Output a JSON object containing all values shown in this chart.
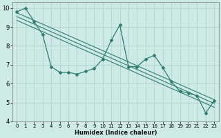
{
  "xlabel": "Humidex (Indice chaleur)",
  "bg_color": "#ceeae6",
  "grid_color": "#afd4cf",
  "line_color": "#2d7d72",
  "xlim": [
    -0.5,
    23.5
  ],
  "ylim": [
    4,
    10.3
  ],
  "yticks": [
    4,
    5,
    6,
    7,
    8,
    9,
    10
  ],
  "xticks": [
    0,
    1,
    2,
    3,
    4,
    5,
    6,
    7,
    8,
    9,
    10,
    11,
    12,
    13,
    14,
    15,
    16,
    17,
    18,
    19,
    20,
    21,
    22,
    23
  ],
  "data_x": [
    0,
    1,
    2,
    3,
    4,
    5,
    6,
    7,
    8,
    9,
    10,
    11,
    12,
    13,
    14,
    15,
    16,
    17,
    18,
    19,
    20,
    21,
    22,
    23
  ],
  "data_y": [
    9.8,
    10.0,
    9.3,
    8.6,
    6.9,
    6.6,
    6.6,
    6.5,
    6.65,
    6.8,
    7.3,
    8.3,
    9.1,
    6.9,
    6.9,
    7.3,
    7.5,
    6.85,
    6.1,
    5.6,
    5.5,
    5.35,
    4.45,
    5.1
  ],
  "reg_lines": [
    {
      "x": [
        0,
        23
      ],
      "y": [
        9.75,
        5.15
      ]
    },
    {
      "x": [
        0,
        23
      ],
      "y": [
        9.55,
        4.95
      ]
    },
    {
      "x": [
        0,
        23
      ],
      "y": [
        9.35,
        4.75
      ]
    }
  ]
}
